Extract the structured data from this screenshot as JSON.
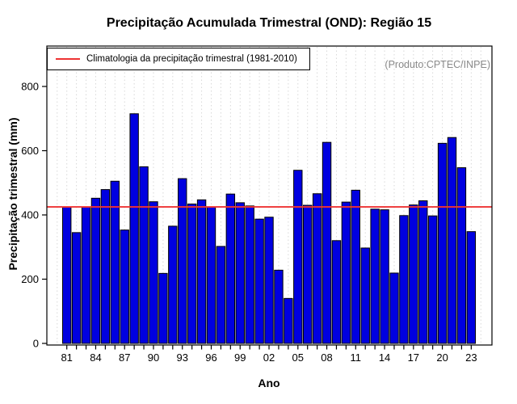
{
  "title": "Precipitação Acumulada Trimestral (OND): Região 15",
  "legend": {
    "label": "Climatologia da precipitação trimestral (1981-2010)"
  },
  "watermark": "(Produto:CPTEC/INPE)",
  "chart_data": {
    "type": "bar",
    "title": "Precipitação Acumulada Trimestral (OND): Região 15",
    "xlabel": "Ano",
    "ylabel": "Precipitação trimestral (mm)",
    "ylim": [
      0,
      800
    ],
    "yticks": [
      0,
      200,
      400,
      600,
      800
    ],
    "xtick_labels": [
      "81",
      "84",
      "87",
      "90",
      "93",
      "96",
      "99",
      "02",
      "05",
      "08",
      "11",
      "14",
      "17",
      "20",
      "23"
    ],
    "grid": "vertical-dashed-every-year",
    "legend_position": "top-left-inside",
    "categories": [
      1981,
      1982,
      1983,
      1984,
      1985,
      1986,
      1987,
      1988,
      1989,
      1990,
      1991,
      1992,
      1993,
      1994,
      1995,
      1996,
      1997,
      1998,
      1999,
      2000,
      2001,
      2002,
      2003,
      2004,
      2005,
      2006,
      2007,
      2008,
      2009,
      2010,
      2011,
      2012,
      2013,
      2014,
      2015,
      2016,
      2017,
      2018,
      2019,
      2020,
      2021,
      2022,
      2023
    ],
    "values": [
      425,
      345,
      425,
      452,
      479,
      505,
      353,
      715,
      550,
      441,
      218,
      365,
      513,
      434,
      447,
      424,
      302,
      465,
      438,
      428,
      387,
      393,
      228,
      140,
      539,
      430,
      466,
      626,
      320,
      440,
      477,
      297,
      418,
      416,
      219,
      398,
      431,
      444,
      397,
      623,
      641,
      547,
      348
    ],
    "climatology_line": 425,
    "colors": {
      "bar_fill": "#0000e0",
      "bar_border": "#000000",
      "climatology_line": "#ee3333",
      "grid": "#d8d8d8",
      "axis": "#000000",
      "watermark_text": "#8a8a8a"
    }
  }
}
